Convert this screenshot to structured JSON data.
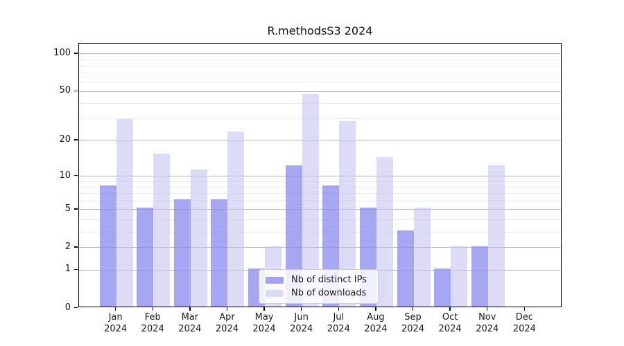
{
  "title": "R.methodsS3 2024",
  "chart_data": {
    "type": "bar",
    "title": "R.methodsS3 2024",
    "months": [
      "Jan",
      "Feb",
      "Mar",
      "Apr",
      "May",
      "Jun",
      "Jul",
      "Aug",
      "Sep",
      "Oct",
      "Nov",
      "Dec"
    ],
    "year": "2024",
    "series": [
      {
        "name": "Nb of distinct IPs",
        "values": [
          8,
          5,
          6,
          6,
          1,
          12,
          8,
          5,
          3,
          1,
          2,
          0
        ]
      },
      {
        "name": "Nb of downloads",
        "values": [
          29,
          15,
          11,
          23,
          2,
          46,
          28,
          14,
          5,
          2,
          12,
          0
        ]
      }
    ],
    "yscale": "log1p",
    "ylim": [
      0,
      120
    ],
    "yticks": [
      100,
      50,
      20,
      10,
      5,
      2,
      1,
      0
    ],
    "minor_yticks": [
      3,
      4,
      6,
      7,
      8,
      9,
      30,
      40,
      60,
      70,
      80,
      90
    ],
    "grid": true,
    "legend_position": "lower center"
  },
  "colors": {
    "background": "#ffffff",
    "bar_ips": "rgba(138,138,237,0.76)",
    "bar_downloads": "rgba(199,199,246,0.62)",
    "legend_swatch_ips": "#a3a3ef",
    "legend_swatch_downloads": "#dadaf8",
    "grid_major": "#b4b4b4",
    "grid_minor": "#e9e9e9",
    "axis": "#000000",
    "text": "#1a1a1a"
  }
}
